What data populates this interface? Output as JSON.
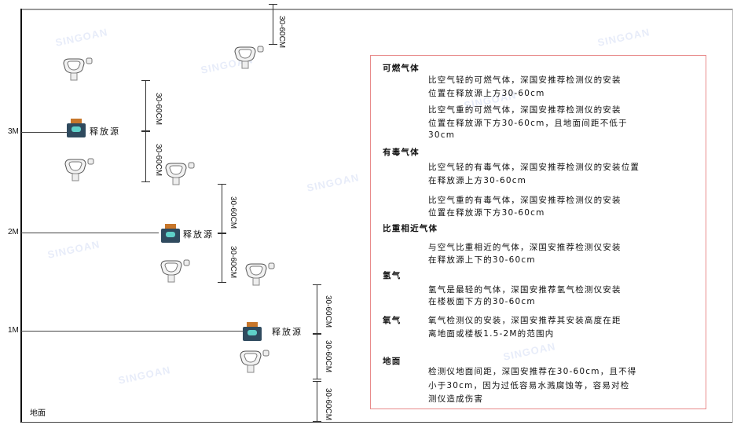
{
  "watermark": "SINGOAN 深国安",
  "levels": {
    "l3": "3M",
    "l2": "2M",
    "l1": "1M",
    "ground": "地面"
  },
  "source_label": "释放源",
  "dim_label": "30-60CM",
  "notes": {
    "flammable": {
      "title": "可燃气体",
      "p1": [
        "比空气轻的可燃气体，深国安推荐检测仪的安装",
        "位置在释放源上方30-60cm"
      ],
      "p2": [
        "比空气重的可燃气体，深国安推荐检测仪的安装",
        "位置在释放源下方30-60cm，且地面间距不低于",
        "30cm"
      ]
    },
    "toxic": {
      "title": "有毒气体",
      "p1": [
        "比空气轻的有毒气体，深国安推荐检测仪的安装位置",
        "在释放源上方30-60cm"
      ],
      "p2": [
        "比空气重的有毒气体，深国安推荐检测仪的安装",
        "位置在释放源下方30-60cm"
      ]
    },
    "similar": {
      "title": "比重相近气体",
      "p1": [
        "与空气比重相近的气体，深国安推荐检测仪安装",
        "在释放源上下的30-60cm"
      ]
    },
    "hydrogen": {
      "title": "氢气",
      "p1": [
        "氢气是最轻的气体，深国安推荐氢气检测仪安装",
        "在楼板面下方的30-60cm"
      ]
    },
    "oxygen": {
      "title": "氧气",
      "p1": [
        "氧气检测仪的安装，深国安推荐其安装高度在距",
        "离地面或楼板1.5-2M的范围内"
      ]
    },
    "ground": {
      "title": "地面",
      "p1": [
        "检测仪地面间距，深国安推荐在30-60cm，且不得",
        "小于30cm，因为过低容易水溅腐蚀等，容易对检",
        "测仪造成伤害"
      ]
    }
  },
  "colors": {
    "box_border": "#e88a8a",
    "source_body": "#2f4a5e",
    "source_top": "#c7762a",
    "source_face": "#5fd0c8"
  }
}
